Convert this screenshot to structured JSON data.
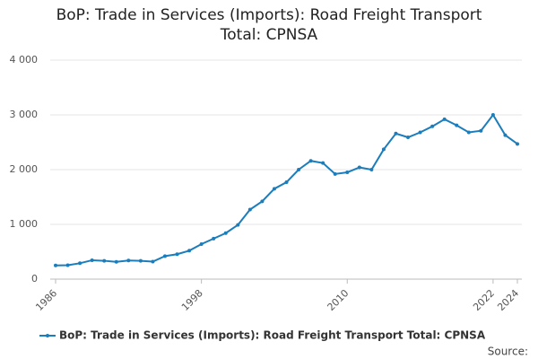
{
  "chart_data": {
    "type": "line",
    "title": "BoP: Trade in Services (Imports): Road Freight Transport Total: CPNSA",
    "x": [
      1986,
      1987,
      1988,
      1989,
      1990,
      1991,
      1992,
      1993,
      1994,
      1995,
      1996,
      1997,
      1998,
      1999,
      2000,
      2001,
      2002,
      2003,
      2004,
      2005,
      2006,
      2007,
      2008,
      2009,
      2010,
      2011,
      2012,
      2013,
      2014,
      2015,
      2016,
      2017,
      2018,
      2019,
      2020,
      2021,
      2022,
      2023,
      2024
    ],
    "series": [
      {
        "name": "BoP: Trade in Services (Imports): Road Freight Transport Total: CPNSA",
        "color": "#1b7dbb",
        "values": [
          250,
          255,
          290,
          345,
          335,
          315,
          340,
          335,
          320,
          420,
          455,
          520,
          640,
          740,
          840,
          990,
          1270,
          1420,
          1650,
          1770,
          2000,
          2160,
          2120,
          1920,
          1950,
          2040,
          2000,
          2370,
          2660,
          2590,
          2680,
          2790,
          2920,
          2810,
          2680,
          2710,
          3000,
          2630,
          2470
        ]
      }
    ],
    "xlim": [
      1986,
      2024
    ],
    "xticks": [
      1986,
      1998,
      2010,
      2022,
      2024
    ],
    "ylim": [
      0,
      4000
    ],
    "yticks": [
      0,
      {
        "value": 1000,
        "label": "1 000"
      },
      {
        "value": 2000,
        "label": "2 000"
      },
      {
        "value": 3000,
        "label": "3 000"
      },
      {
        "value": 4000,
        "label": "4 000"
      }
    ],
    "grid": true,
    "source_label": "Source:"
  }
}
